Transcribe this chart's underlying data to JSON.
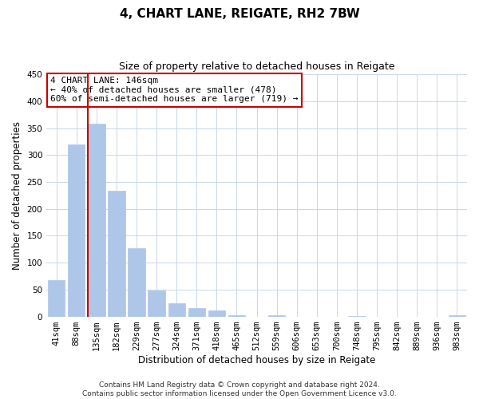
{
  "title": "4, CHART LANE, REIGATE, RH2 7BW",
  "subtitle": "Size of property relative to detached houses in Reigate",
  "xlabel": "Distribution of detached houses by size in Reigate",
  "ylabel": "Number of detached properties",
  "bar_labels": [
    "41sqm",
    "88sqm",
    "135sqm",
    "182sqm",
    "229sqm",
    "277sqm",
    "324sqm",
    "371sqm",
    "418sqm",
    "465sqm",
    "512sqm",
    "559sqm",
    "606sqm",
    "653sqm",
    "700sqm",
    "748sqm",
    "795sqm",
    "842sqm",
    "889sqm",
    "936sqm",
    "983sqm"
  ],
  "bar_values": [
    68,
    320,
    358,
    234,
    127,
    49,
    25,
    16,
    11,
    3,
    0,
    2,
    0,
    0,
    0,
    1,
    0,
    0,
    0,
    0,
    2
  ],
  "bar_color": "#aec6e8",
  "bar_edge_color": "#aec6e8",
  "vline_color": "#cc0000",
  "annotation_line1": "4 CHART LANE: 146sqm",
  "annotation_line2": "← 40% of detached houses are smaller (478)",
  "annotation_line3": "60% of semi-detached houses are larger (719) →",
  "annotation_box_color": "#ffffff",
  "annotation_box_edge": "#cc0000",
  "ylim": [
    0,
    450
  ],
  "yticks": [
    0,
    50,
    100,
    150,
    200,
    250,
    300,
    350,
    400,
    450
  ],
  "footer": "Contains HM Land Registry data © Crown copyright and database right 2024.\nContains public sector information licensed under the Open Government Licence v3.0.",
  "bg_color": "#ffffff",
  "grid_color": "#c8d8e8",
  "title_fontsize": 11,
  "subtitle_fontsize": 9,
  "axis_label_fontsize": 8.5,
  "tick_fontsize": 7.5,
  "annotation_fontsize": 8,
  "footer_fontsize": 6.5
}
